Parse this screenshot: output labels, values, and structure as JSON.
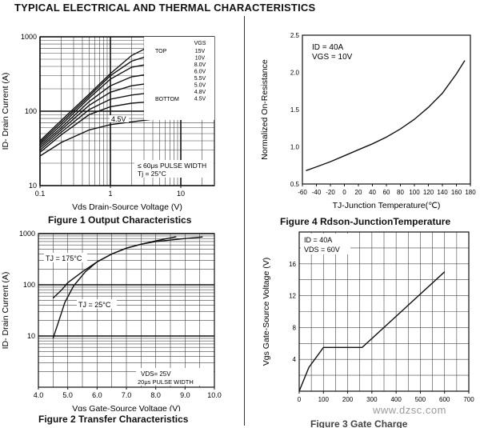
{
  "page_title": "TYPICAL ELECTRICAL AND THERMAL CHARACTERISTICS",
  "watermark": "www.dzsc.com",
  "chart_data": [
    {
      "id": "fig1",
      "type": "line",
      "caption": "Figure 1 Output Characteristics",
      "xlabel": "Vds Drain-Source Voltage (V)",
      "ylabel": "ID- Drain Current (A)",
      "xscale": "log",
      "yscale": "log",
      "xlim": [
        0.1,
        30
      ],
      "ylim": [
        10,
        1000
      ],
      "xticks": [
        0.1,
        1,
        10
      ],
      "xtick_labels": [
        "0.1",
        "1",
        "10"
      ],
      "yticks": [
        10,
        100,
        1000
      ],
      "ytick_labels": [
        "10",
        "100",
        "1000"
      ],
      "grid": true,
      "legend_title": "VGS",
      "legend_entries": [
        "15V",
        "10V",
        "8.0V",
        "6.0V",
        "5.5V",
        "5.0V",
        "4.8V",
        "4.5V"
      ],
      "legend_top_label": "TOP",
      "legend_bottom_label": "BOTTOM",
      "curve_label": "4.5V",
      "notes": [
        "≤ 60μs PULSE WIDTH",
        "Tj = 25°C"
      ],
      "series": [
        {
          "x": [
            0.1,
            0.2,
            0.5,
            1,
            2,
            4,
            6
          ],
          "y": [
            40,
            75,
            170,
            320,
            560,
            780,
            830
          ]
        },
        {
          "x": [
            0.1,
            0.2,
            0.5,
            1,
            2,
            4,
            7
          ],
          "y": [
            38,
            70,
            160,
            300,
            470,
            580,
            620
          ]
        },
        {
          "x": [
            0.1,
            0.2,
            0.5,
            1,
            2,
            4,
            7
          ],
          "y": [
            36,
            65,
            150,
            270,
            390,
            440,
            460
          ]
        },
        {
          "x": [
            0.1,
            0.2,
            0.5,
            1,
            2,
            4,
            7
          ],
          "y": [
            34,
            60,
            135,
            220,
            290,
            320,
            335
          ]
        },
        {
          "x": [
            0.1,
            0.2,
            0.5,
            1,
            2,
            4,
            7
          ],
          "y": [
            32,
            56,
            120,
            180,
            220,
            240,
            250
          ]
        },
        {
          "x": [
            0.1,
            0.2,
            0.5,
            1,
            2,
            4,
            7
          ],
          "y": [
            30,
            52,
            105,
            145,
            165,
            178,
            185
          ]
        },
        {
          "x": [
            0.1,
            0.2,
            0.5,
            1,
            2,
            4,
            7
          ],
          "y": [
            28,
            48,
            90,
            115,
            128,
            135,
            140
          ]
        },
        {
          "x": [
            0.1,
            0.2,
            0.5,
            1,
            2,
            5,
            10,
            20
          ],
          "y": [
            25,
            38,
            56,
            66,
            72,
            80,
            92,
            105
          ]
        }
      ]
    },
    {
      "id": "fig2",
      "type": "line",
      "caption": "Figure 2 Transfer Characteristics",
      "xlabel": "Vgs Gate-Source Voltage (V)",
      "ylabel": "ID- Drain Current (A)",
      "yscale": "log",
      "xlim": [
        4.0,
        10.0
      ],
      "ylim": [
        1,
        1000
      ],
      "xticks": [
        4.0,
        5.0,
        6.0,
        7.0,
        8.0,
        9.0,
        10.0
      ],
      "xtick_labels": [
        "4.0",
        "5.0",
        "6.0",
        "7.0",
        "8.0",
        "9.0",
        "10.0"
      ],
      "yticks": [
        10,
        100,
        1000
      ],
      "ytick_labels": [
        "10",
        "100",
        "1000"
      ],
      "grid": true,
      "notes": [
        "VDS= 25V",
        "20μs PULSE WIDTH"
      ],
      "series": [
        {
          "name": "TJ = 175°C",
          "x": [
            4.5,
            4.8,
            5.0,
            5.5,
            6.0,
            6.5,
            7.0,
            7.5,
            8.0,
            8.7
          ],
          "y": [
            55,
            80,
            110,
            180,
            280,
            400,
            520,
            620,
            720,
            870
          ]
        },
        {
          "name": "TJ = 25°C",
          "x": [
            4.5,
            4.7,
            4.9,
            5.2,
            5.6,
            6.0,
            6.5,
            7.0,
            7.5,
            8.0,
            9.0,
            9.6
          ],
          "y": [
            9,
            20,
            45,
            95,
            180,
            280,
            400,
            520,
            620,
            700,
            800,
            860
          ]
        }
      ]
    },
    {
      "id": "fig4",
      "type": "line",
      "caption": "Figure 4 Rdson-JunctionTemperature",
      "xlabel": "TJ-Junction Temperature(℃)",
      "ylabel": "Normalized On-Resistance",
      "xlim": [
        -60,
        180
      ],
      "ylim": [
        0.5,
        2.5
      ],
      "xticks": [
        -60,
        -40,
        -20,
        0,
        20,
        40,
        60,
        80,
        100,
        120,
        140,
        160,
        180
      ],
      "xtick_labels": [
        "-60",
        "-40",
        "-20",
        "0",
        "20",
        "40",
        "60",
        "80",
        "100",
        "120",
        "140",
        "160",
        "180"
      ],
      "yticks": [
        0.5,
        1.0,
        1.5,
        2.0,
        2.5
      ],
      "ytick_labels": [
        "0.5",
        "1.0",
        "1.5",
        "2.0",
        "2.5"
      ],
      "grid": false,
      "notes": [
        "ID = 40A",
        "VGS = 10V"
      ],
      "series": [
        {
          "x": [
            -55,
            -40,
            -20,
            0,
            20,
            40,
            60,
            80,
            100,
            120,
            140,
            160,
            172
          ],
          "y": [
            0.68,
            0.73,
            0.8,
            0.88,
            0.96,
            1.04,
            1.13,
            1.24,
            1.37,
            1.53,
            1.72,
            1.98,
            2.16
          ]
        }
      ]
    },
    {
      "id": "fig3",
      "type": "line",
      "caption": "Figure 3 Gate Charge",
      "ylabel": "Vgs Gate-Source Voltage (V)",
      "xlim": [
        0,
        700
      ],
      "ylim": [
        0,
        20
      ],
      "xticks": [
        0,
        100,
        200,
        300,
        400,
        500,
        600,
        700
      ],
      "xtick_labels": [
        "0",
        "100",
        "200",
        "300",
        "400",
        "500",
        "600",
        "700"
      ],
      "yticks": [
        4,
        8,
        12,
        16
      ],
      "ytick_labels": [
        "4",
        "8",
        "12",
        "16"
      ],
      "grid": true,
      "notes": [
        "ID = 40A",
        "VDS = 60V"
      ],
      "series": [
        {
          "x": [
            0,
            40,
            100,
            260,
            600
          ],
          "y": [
            0,
            3,
            5.5,
            5.5,
            15
          ]
        }
      ]
    }
  ]
}
